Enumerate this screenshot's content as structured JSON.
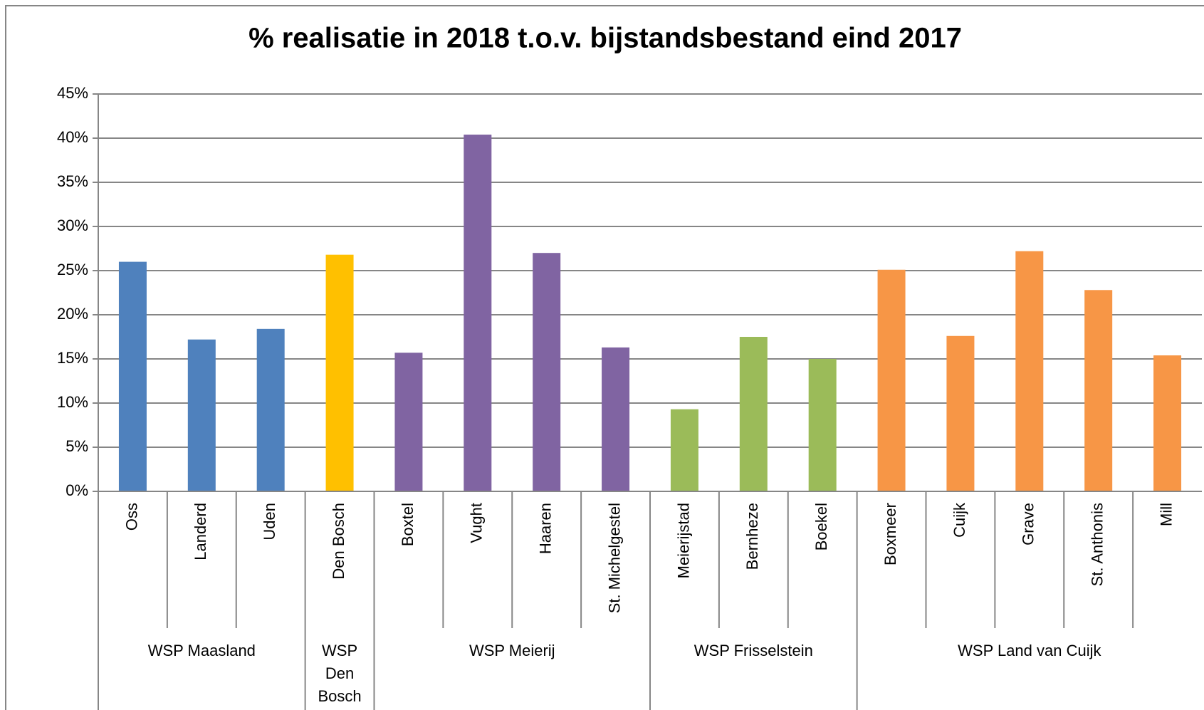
{
  "chart_data": {
    "type": "bar",
    "title": "% realisatie in 2018 t.o.v. bijstandsbestand eind 2017",
    "groups": [
      {
        "name": "WSP Maasland",
        "color": "#4f81bd",
        "categories": [
          "Oss",
          "Landerd",
          "Uden"
        ],
        "values": [
          26,
          17.2,
          18.4
        ]
      },
      {
        "name": "WSP Den Bosch",
        "color": "#ffc000",
        "categories": [
          "Den Bosch"
        ],
        "values": [
          26.8
        ]
      },
      {
        "name": "WSP Meierij",
        "color": "#8064a2",
        "categories": [
          "Boxtel",
          "Vught",
          "Haaren",
          "St. Michelgestel"
        ],
        "values": [
          15.7,
          40.4,
          27,
          16.3
        ]
      },
      {
        "name": "WSP Frisselstein",
        "color": "#9bbb59",
        "categories": [
          "Meierijstad",
          "Bernheze",
          "Boekel"
        ],
        "values": [
          9.3,
          17.5,
          15
        ]
      },
      {
        "name": "WSP Land van Cuijk",
        "color": "#f79646",
        "categories": [
          "Boxmeer",
          "Cuijk",
          "Grave",
          "St. Anthonis",
          "Mill"
        ],
        "values": [
          25.1,
          17.6,
          27.2,
          22.8,
          15.4
        ]
      }
    ],
    "ylim": [
      0,
      45
    ],
    "yticks": [
      {
        "value": 0,
        "label": "0%"
      },
      {
        "value": 5,
        "label": "5%"
      },
      {
        "value": 10,
        "label": "10%"
      },
      {
        "value": 15,
        "label": "15%"
      },
      {
        "value": 20,
        "label": "20%"
      },
      {
        "value": 25,
        "label": "25%"
      },
      {
        "value": 30,
        "label": "30%"
      },
      {
        "value": 35,
        "label": "35%"
      },
      {
        "value": 40,
        "label": "40%"
      },
      {
        "value": 45,
        "label": "45%"
      }
    ],
    "grid": true
  }
}
